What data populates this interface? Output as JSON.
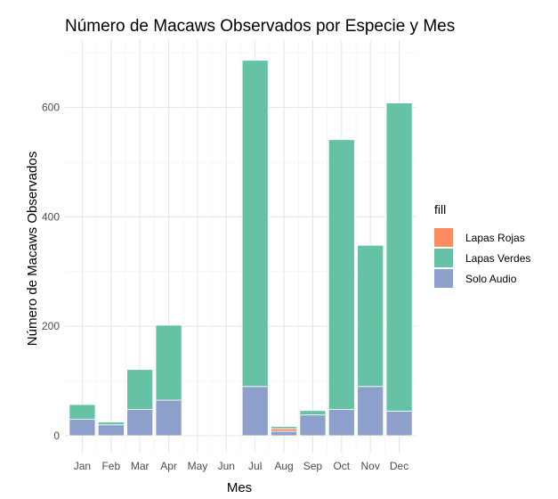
{
  "chart_data": {
    "type": "bar",
    "stacked": true,
    "title": "Número de Macaws Observados por Especie y Mes",
    "xlabel": "Mes",
    "ylabel": "Número de Macaws Observados",
    "categories": [
      "Jan",
      "Feb",
      "Mar",
      "Apr",
      "May",
      "Jun",
      "Jul",
      "Aug",
      "Sep",
      "Oct",
      "Nov",
      "Dec"
    ],
    "ylim": [
      0,
      720
    ],
    "yticks": [
      0,
      200,
      400,
      600
    ],
    "grid": true,
    "legend": {
      "title": "fill",
      "position": "right"
    },
    "series": [
      {
        "name": "Solo Audio",
        "color": "#8DA0CB",
        "values": [
          30,
          20,
          48,
          65,
          0,
          0,
          90,
          8,
          38,
          48,
          90,
          45
        ]
      },
      {
        "name": "Lapas Rojas",
        "color": "#FC8D62",
        "values": [
          0,
          0,
          0,
          0,
          0,
          0,
          0,
          5,
          0,
          0,
          0,
          0
        ]
      },
      {
        "name": "Lapas Verdes",
        "color": "#66C2A5",
        "values": [
          27,
          5,
          73,
          137,
          0,
          0,
          596,
          4,
          8,
          493,
          258,
          563
        ]
      }
    ],
    "legend_order": [
      "Lapas Rojas",
      "Lapas Verdes",
      "Solo Audio"
    ]
  }
}
